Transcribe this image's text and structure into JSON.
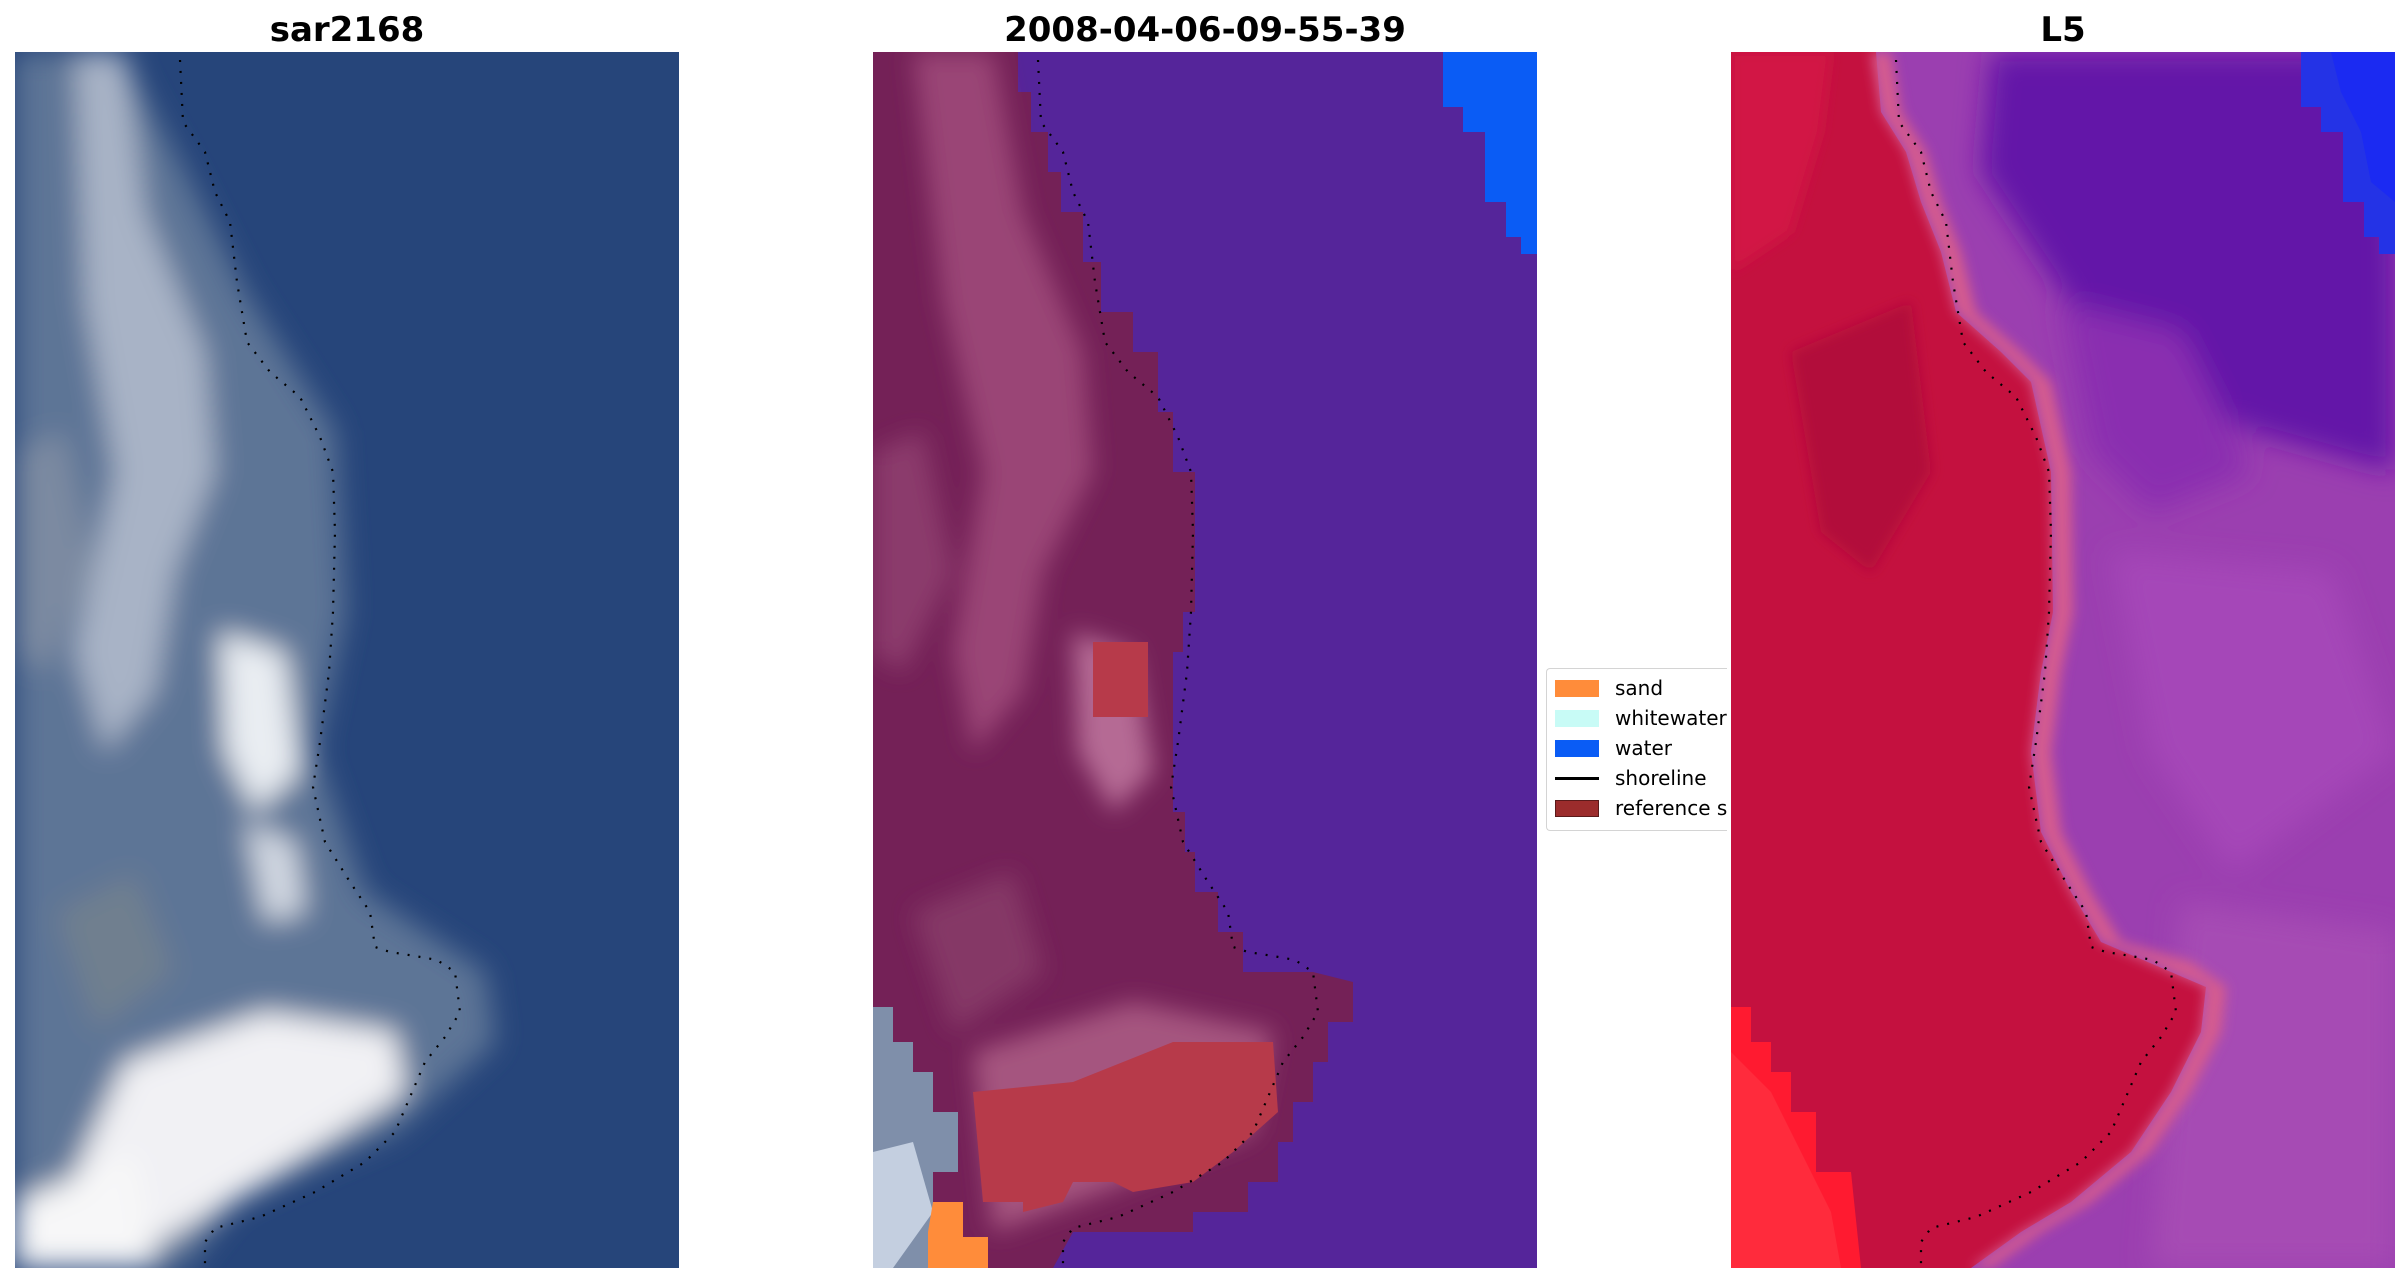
{
  "panels": [
    {
      "title": "sar2168"
    },
    {
      "title": "2008-04-06-09-55-39"
    },
    {
      "title": "L5"
    }
  ],
  "legend": [
    {
      "label": "sand",
      "color": "#ff8c3a"
    },
    {
      "label": "whitewater",
      "color": "#c8fbf6"
    },
    {
      "label": "water",
      "color": "#0a5cf5"
    },
    {
      "label": "shoreline",
      "color": "#000000"
    },
    {
      "label": "reference s",
      "color": "#9b2c2c"
    }
  ]
}
